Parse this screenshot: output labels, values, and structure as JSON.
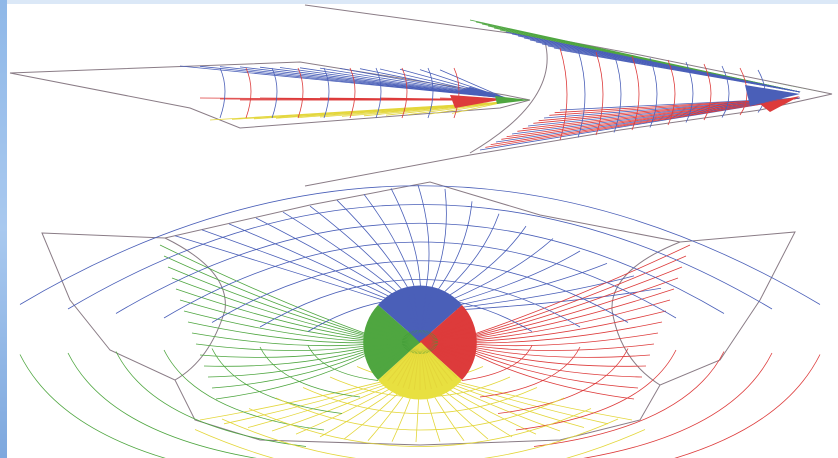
{
  "figure": {
    "panels": [
      {
        "name": "top-left-wing",
        "quadrants": [
          "blue",
          "red",
          "yellow",
          "green"
        ]
      },
      {
        "name": "top-right-wing",
        "quadrants": [
          "blue",
          "green",
          "red"
        ]
      },
      {
        "name": "bottom-net",
        "quadrants": [
          "blue",
          "red",
          "yellow",
          "green"
        ]
      }
    ],
    "colors": {
      "blue": "#4a5fb8",
      "red": "#dd3b3b",
      "green": "#4fa640",
      "yellow": "#e3d63a",
      "outline": "#8a7c86"
    }
  }
}
